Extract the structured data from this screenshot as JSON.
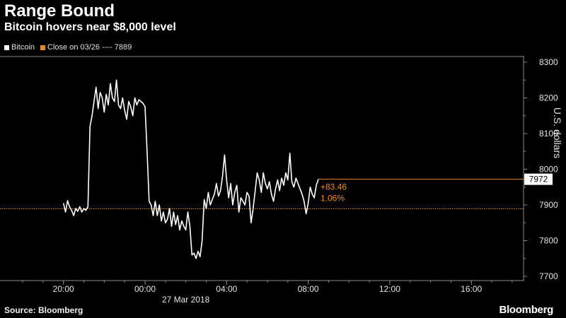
{
  "title": "Range Bound",
  "subtitle": "Bitcoin hovers near $8,000 level",
  "legend": {
    "series_label": "Bitcoin",
    "reference_label": "Close on 03/26 ---- 7889"
  },
  "footer": {
    "source": "Source: Bloomberg",
    "brand": "Bloomberg"
  },
  "colors": {
    "background": "#000000",
    "series": "#ffffff",
    "reference": "#f08c1e"
  },
  "chart_data": {
    "type": "line",
    "ylabel": "U.S. dollars",
    "ylim": [
      7700,
      8300
    ],
    "yticks": [
      "8300",
      "8200",
      "8100",
      "8000",
      "7900",
      "7800",
      "7700"
    ],
    "xticks": [
      "20:00",
      "00:00",
      "04:00",
      "08:00",
      "12:00",
      "16:00"
    ],
    "xdate_label": "27 Mar 2018",
    "reference": {
      "label": "Close on 03/26",
      "value": 7889
    },
    "last_value_label": "7972",
    "change_label": "+83.46",
    "change_pct_label": "1.06%",
    "series": [
      {
        "name": "Bitcoin",
        "x_hours": [
          -4.0,
          -3.9,
          -3.8,
          -3.7,
          -3.6,
          -3.5,
          -3.4,
          -3.3,
          -3.2,
          -3.1,
          -3.0,
          -2.9,
          -2.8,
          -2.7,
          -2.6,
          -2.5,
          -2.4,
          -2.3,
          -2.2,
          -2.1,
          -2.0,
          -1.9,
          -1.8,
          -1.7,
          -1.6,
          -1.5,
          -1.4,
          -1.3,
          -1.2,
          -1.1,
          -1.0,
          -0.9,
          -0.8,
          -0.7,
          -0.6,
          -0.5,
          -0.4,
          -0.3,
          -0.2,
          -0.1,
          0.0,
          0.1,
          0.2,
          0.3,
          0.4,
          0.5,
          0.6,
          0.7,
          0.8,
          0.9,
          1.0,
          1.1,
          1.2,
          1.3,
          1.4,
          1.5,
          1.6,
          1.7,
          1.8,
          1.9,
          2.0,
          2.1,
          2.2,
          2.3,
          2.4,
          2.5,
          2.6,
          2.7,
          2.8,
          2.9,
          3.0,
          3.1,
          3.2,
          3.3,
          3.4,
          3.5,
          3.6,
          3.7,
          3.8,
          3.9,
          4.0,
          4.1,
          4.2,
          4.3,
          4.4,
          4.5,
          4.6,
          4.7,
          4.8,
          4.9,
          5.0,
          5.1,
          5.2,
          5.3,
          5.4,
          5.5,
          5.6,
          5.7,
          5.8,
          5.9,
          6.0,
          6.1,
          6.2,
          6.3,
          6.4,
          6.5,
          6.6,
          6.7,
          6.8,
          6.9,
          7.0,
          7.1,
          7.2,
          7.3,
          7.4,
          7.5,
          7.6,
          7.7,
          7.8,
          7.9,
          8.0,
          8.1,
          8.2,
          8.3,
          8.4,
          8.5
        ],
        "values": [
          7905,
          7880,
          7912,
          7895,
          7885,
          7870,
          7890,
          7882,
          7895,
          7880,
          7890,
          7885,
          7895,
          8120,
          8150,
          8190,
          8230,
          8170,
          8215,
          8200,
          8160,
          8210,
          8180,
          8240,
          8200,
          8190,
          8250,
          8180,
          8170,
          8200,
          8165,
          8140,
          8190,
          8175,
          8150,
          8200,
          8180,
          8195,
          8190,
          8185,
          8175,
          8050,
          7910,
          7900,
          7870,
          7910,
          7870,
          7900,
          7855,
          7880,
          7850,
          7860,
          7890,
          7840,
          7880,
          7845,
          7870,
          7830,
          7855,
          7840,
          7830,
          7880,
          7840,
          7760,
          7765,
          7750,
          7770,
          7755,
          7800,
          7915,
          7890,
          7935,
          7900,
          7915,
          7930,
          7960,
          7925,
          7940,
          7980,
          8040,
          7970,
          7920,
          7960,
          7900,
          7935,
          7955,
          7880,
          7920,
          7910,
          7900,
          7935,
          7925,
          7850,
          7890,
          7940,
          7990,
          7970,
          7935,
          7990,
          7960,
          7945,
          7965,
          7930,
          7910,
          7945,
          7970,
          7940,
          7975,
          7955,
          7990,
          7970,
          8045,
          7965,
          7950,
          7975,
          7960,
          7945,
          7930,
          7910,
          7875,
          7905,
          7950,
          7930,
          7920,
          7955,
          7972
        ]
      }
    ]
  }
}
